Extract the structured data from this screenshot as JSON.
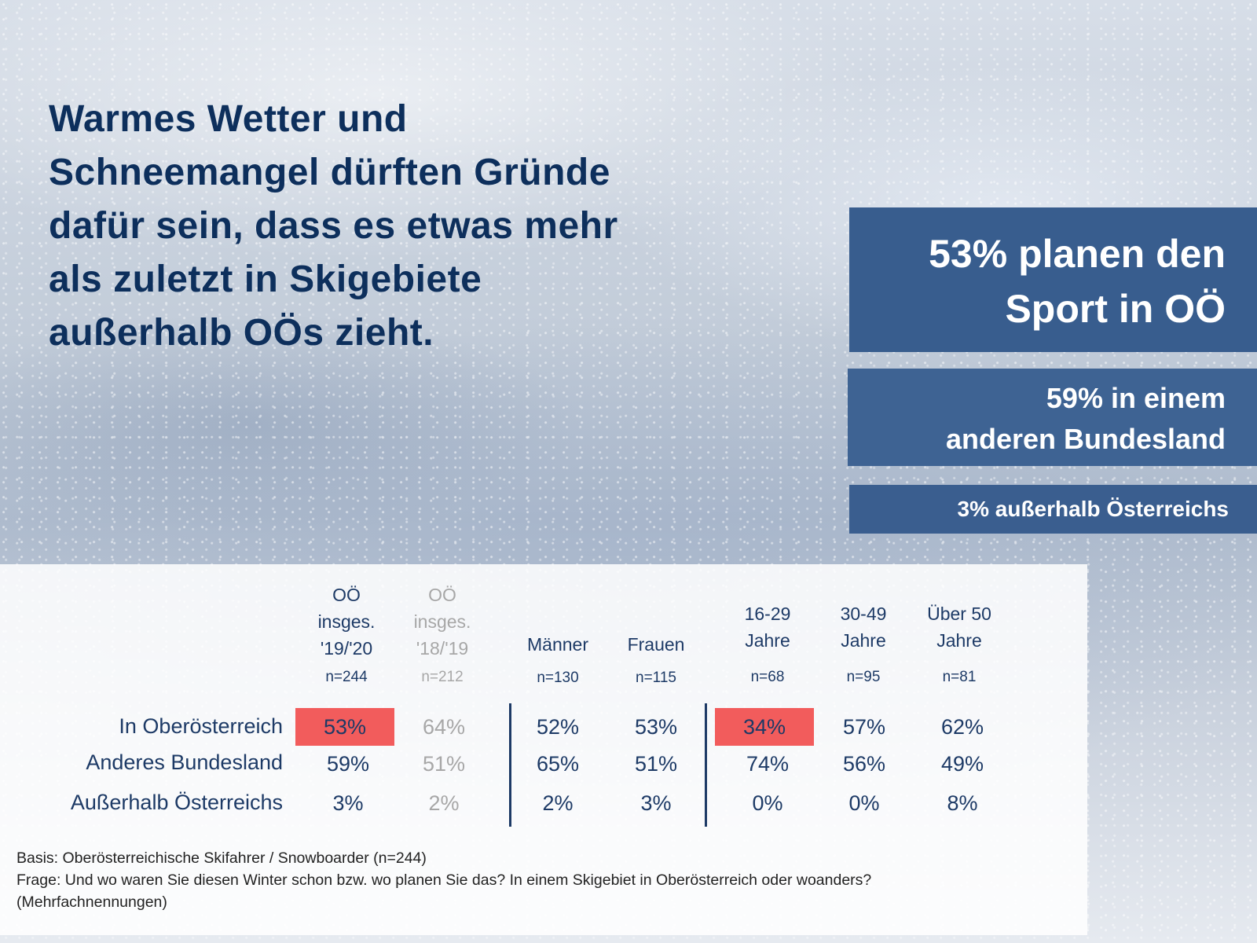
{
  "headline": {
    "lines": [
      "Warmes Wetter und",
      "Schneemangel dürften Gründe",
      "dafür sein, dass es etwas mehr",
      "als zuletzt in Skigebiete",
      "außerhalb OÖs zieht."
    ]
  },
  "highlights": {
    "box1": [
      "53% planen den",
      "Sport in OÖ"
    ],
    "box2": [
      "59% in einem",
      "anderen Bundesland"
    ],
    "box3": "3% außerhalb Österreichs"
  },
  "colors": {
    "headline": "#0d2f5c",
    "box": "#385d8e",
    "highlight_cell": "#f25c5c",
    "previous_year": "#a7a7a7"
  },
  "table": {
    "columns": [
      {
        "lines": [
          "OÖ",
          "insges.",
          "'19/'20"
        ],
        "n": "n=244",
        "muted": false
      },
      {
        "lines": [
          "OÖ",
          "insges.",
          "'18/'19"
        ],
        "n": "n=212",
        "muted": true
      },
      {
        "lines": [
          "Männer"
        ],
        "n": "n=130",
        "muted": false
      },
      {
        "lines": [
          "Frauen"
        ],
        "n": "n=115",
        "muted": false
      },
      {
        "lines": [
          "16-29",
          "Jahre"
        ],
        "n": "n=68",
        "muted": false
      },
      {
        "lines": [
          "30-49",
          "Jahre"
        ],
        "n": "n=95",
        "muted": false
      },
      {
        "lines": [
          "Über 50",
          "Jahre"
        ],
        "n": "n=81",
        "muted": false
      }
    ],
    "rows": [
      {
        "label": "In Oberösterreich",
        "values": [
          "53%",
          "64%",
          "52%",
          "53%",
          "34%",
          "57%",
          "62%"
        ],
        "highlight": [
          0,
          4
        ]
      },
      {
        "label": "Anderes Bundesland",
        "values": [
          "59%",
          "51%",
          "65%",
          "51%",
          "74%",
          "56%",
          "49%"
        ],
        "highlight": []
      },
      {
        "label": "Außerhalb Österreichs",
        "values": [
          "3%",
          "2%",
          "2%",
          "3%",
          "0%",
          "0%",
          "8%"
        ],
        "highlight": []
      }
    ]
  },
  "footnote": {
    "basis": "Basis: Oberösterreichische Skifahrer / Snowboarder (n=244)",
    "frage": "Frage: Und wo waren Sie diesen Winter schon bzw. wo planen Sie das? In einem Skigebiet in Oberösterreich oder woanders?",
    "note": "(Mehrfachnennungen)"
  }
}
